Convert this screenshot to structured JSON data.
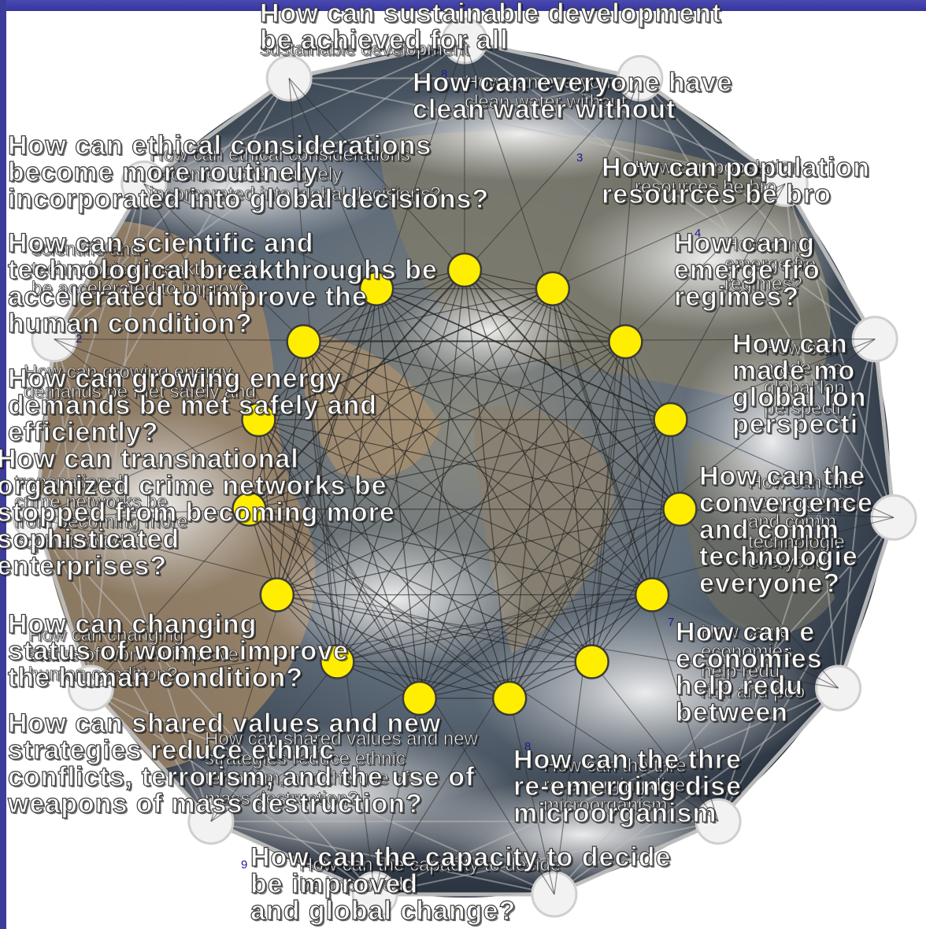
{
  "slide": {
    "background_color": "#ffffff",
    "band_color": "#3c3c9a"
  },
  "diagram": {
    "node_color": "#ffee00",
    "node_stroke": "#3a3a3a",
    "frame_color": "#bdbdbd",
    "globe_colors": {
      "ocean": "#50627a",
      "land": "#9c8466",
      "cloud": "#e4e4e4"
    }
  },
  "labels": {
    "n3": "3",
    "n4": "4",
    "n7": "7",
    "n8": "8",
    "n9": "9",
    "n8_top": "8",
    "n2": "2"
  },
  "questions": {
    "q1_big": "How can everyone have\nclean water without",
    "q1_small": "How can everyone\nclean water without",
    "q2_big": "How can population\nresources be bro",
    "q2_small": "How can population\nresources be bro",
    "q3_big": "How can g\nemerge fro\nregimes?",
    "q3_small": "How can g\nemerge fro\nregimes?",
    "q4_big": "How can\nmade mo\nglobal lon\nperspecti",
    "q4_small": "How can\nmade mo\nglobal lon\nperspecti",
    "q5_big": "How can the\nconvergence\nand comm\ntechnologie\neveryone?",
    "q5_small": "How can the\nconvergence\nand comm\ntechnologie\neveryone",
    "q6_big": "How can e\neconomies\nhelp redu\nbetween",
    "q6_small": "How can e\neconomies\nhelp redu\nrich and poo",
    "q7_big": "How can the thre\nre-emerging dise\nmicroorganism",
    "q7_small": "How can the thre\nre-emerging dise\nmicroorganism",
    "q8_big": "How can the capacity to decide\nbe improved\nand global change?",
    "q8_small": "How can the capacity to decide\nbe improved",
    "q9_big": "How can shared values and new\nstrategies reduce ethnic\nconflicts, terrorism, and the use of\nweapons of mass destruction?",
    "q9_small": "How can shared values and new\nstrategies reduce ethnic\nterrorism, and the use of\nmass destruction?",
    "q10_big": "How can changing\nstatus of women improve\nthe human condition?",
    "q10_small": "How can changing\nstatus of women improve\nhuman condition?",
    "q11_big": "How can transnational\norganized crime networks be\nstopped from becoming more\nsophisticated\nenterprises?",
    "q11_small": "transnational\ncrime networks be\nfrom becoming more\nsophisticated",
    "q12_big": "How can growing energy\ndemands be met safely and\nefficiently?",
    "q12_small": "How can growing energy\ndemands be met safely and",
    "q13_big": "How can scientific and\ntechnological breakthroughs be\naccelerated to improve the\nhuman condition?",
    "q13_small": "scientific and\ntechnological breakthroughs\nbe accelerated to improve",
    "q14_big": "How can ethical considerations\nbecome more routinely\nincorporated into global decisions?",
    "q14_small": "How can ethical considerations\nbecome more routinely\nincorporated into global decisions?",
    "q15_big": "How can sustainable development\nbe achieved for all",
    "q15_small": "sustainable development"
  }
}
